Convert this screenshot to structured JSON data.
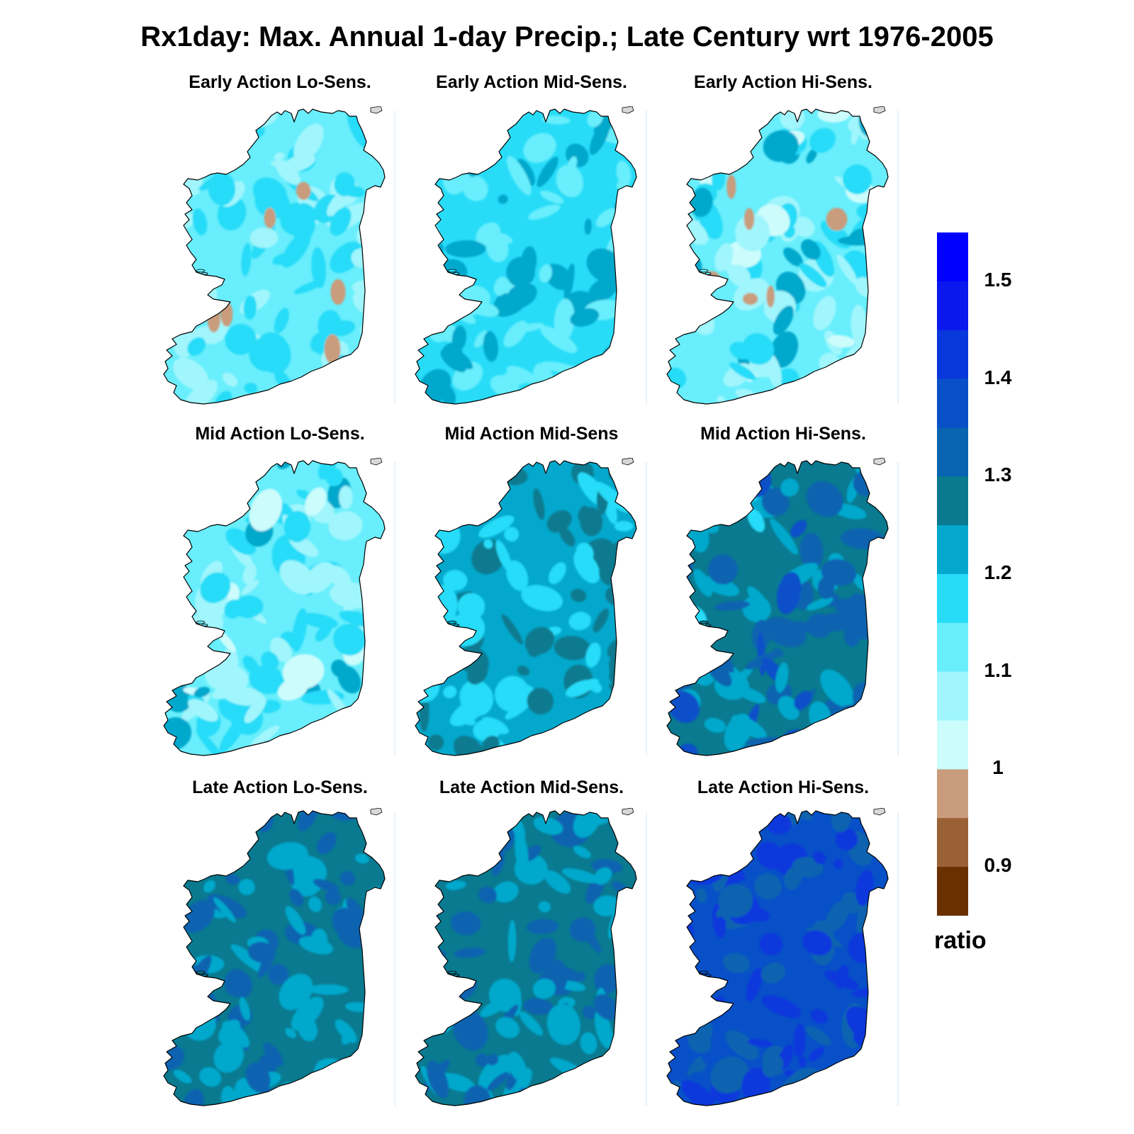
{
  "title": "Rx1day: Max. Annual 1-day Precip.; Late Century wrt 1976-2005",
  "panels": [
    {
      "title": "Early Action Lo-Sens.",
      "base_level": 2,
      "contrast": 1,
      "deficit_patches": true
    },
    {
      "title": "Early Action Mid-Sens.",
      "base_level": 3,
      "contrast": 1,
      "deficit_patches": false
    },
    {
      "title": "Early Action Hi-Sens.",
      "base_level": 2,
      "contrast": 2,
      "deficit_patches": true
    },
    {
      "title": "Mid Action Lo-Sens.",
      "base_level": 2,
      "contrast": 2,
      "deficit_patches": false
    },
    {
      "title": "Mid Action Mid-Sens",
      "base_level": 4,
      "contrast": 1,
      "deficit_patches": false
    },
    {
      "title": "Mid Action Hi-Sens.",
      "base_level": 5,
      "contrast": 2,
      "deficit_patches": false
    },
    {
      "title": "Late Action Lo-Sens.",
      "base_level": 5,
      "contrast": 1,
      "deficit_patches": false
    },
    {
      "title": "Late Action Mid-Sens.",
      "base_level": 5,
      "contrast": 1,
      "deficit_patches": false
    },
    {
      "title": "Late Action Hi-Sens.",
      "base_level": 7,
      "contrast": 1,
      "deficit_patches": false
    }
  ],
  "colorbar": {
    "unit": "ratio",
    "tick_labels": [
      "1.5",
      "1.4",
      "1.3",
      "1.2",
      "1.1",
      "1",
      "0.9"
    ],
    "colors_top_to_bottom": [
      "#0000ff",
      "#0a18ee",
      "#0838dc",
      "#0850c8",
      "#0864b0",
      "#0a7a90",
      "#04a8cc",
      "#28dcf8",
      "#68eefc",
      "#a0f6fc",
      "#ccfcfc",
      "#c89c7c",
      "#9a6036",
      "#6a3000"
    ]
  }
}
